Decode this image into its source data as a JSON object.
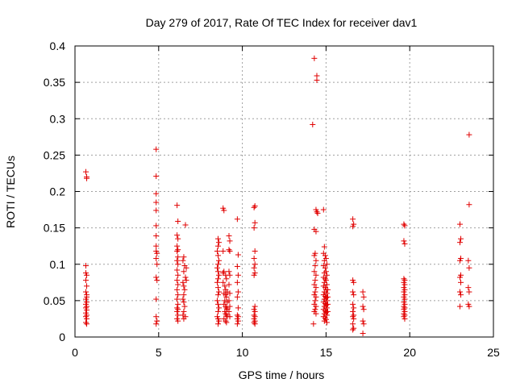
{
  "chart_data": {
    "type": "scatter",
    "title": "Day 279 of 2017, Rate Of TEC Index for receiver dav1",
    "xlabel": "GPS time / hours",
    "ylabel": "ROTI / TECUs",
    "xlim": [
      0,
      25
    ],
    "ylim": [
      0,
      0.4
    ],
    "x_ticks": [
      0,
      5,
      10,
      15,
      20,
      25
    ],
    "y_ticks": [
      0,
      0.05,
      0.1,
      0.15,
      0.2,
      0.25,
      0.3,
      0.35,
      0.4
    ],
    "x_tick_labels": [
      "0",
      "5",
      "10",
      "15",
      "20",
      "25"
    ],
    "y_tick_labels": [
      "0",
      "0.05",
      "0.1",
      "0.15",
      "0.2",
      "0.25",
      "0.3",
      "0.35",
      "0.4"
    ],
    "grid": true,
    "marker": "+",
    "color": "#e00000",
    "points": [
      [
        0.65,
        0.227
      ],
      [
        0.7,
        0.22
      ],
      [
        0.7,
        0.218
      ],
      [
        0.65,
        0.098
      ],
      [
        0.65,
        0.088
      ],
      [
        0.7,
        0.085
      ],
      [
        0.65,
        0.078
      ],
      [
        0.7,
        0.07
      ],
      [
        0.65,
        0.062
      ],
      [
        0.7,
        0.058
      ],
      [
        0.7,
        0.055
      ],
      [
        0.65,
        0.052
      ],
      [
        0.7,
        0.048
      ],
      [
        0.65,
        0.045
      ],
      [
        0.7,
        0.042
      ],
      [
        0.65,
        0.04
      ],
      [
        0.7,
        0.037
      ],
      [
        0.65,
        0.033
      ],
      [
        0.7,
        0.03
      ],
      [
        0.65,
        0.028
      ],
      [
        0.7,
        0.025
      ],
      [
        0.65,
        0.02
      ],
      [
        0.7,
        0.018
      ],
      [
        4.85,
        0.258
      ],
      [
        4.85,
        0.221
      ],
      [
        4.85,
        0.197
      ],
      [
        4.85,
        0.185
      ],
      [
        4.85,
        0.174
      ],
      [
        4.85,
        0.153
      ],
      [
        4.85,
        0.139
      ],
      [
        4.85,
        0.125
      ],
      [
        4.85,
        0.118
      ],
      [
        4.9,
        0.115
      ],
      [
        4.85,
        0.108
      ],
      [
        4.9,
        0.1
      ],
      [
        4.85,
        0.082
      ],
      [
        4.9,
        0.078
      ],
      [
        4.85,
        0.052
      ],
      [
        4.85,
        0.028
      ],
      [
        4.9,
        0.022
      ],
      [
        4.85,
        0.018
      ],
      [
        6.1,
        0.181
      ],
      [
        6.15,
        0.159
      ],
      [
        6.1,
        0.14
      ],
      [
        6.15,
        0.135
      ],
      [
        6.1,
        0.125
      ],
      [
        6.15,
        0.12
      ],
      [
        6.1,
        0.118
      ],
      [
        6.15,
        0.11
      ],
      [
        6.1,
        0.105
      ],
      [
        6.15,
        0.1
      ],
      [
        6.1,
        0.092
      ],
      [
        6.15,
        0.085
      ],
      [
        6.1,
        0.078
      ],
      [
        6.15,
        0.072
      ],
      [
        6.1,
        0.065
      ],
      [
        6.15,
        0.058
      ],
      [
        6.1,
        0.052
      ],
      [
        6.15,
        0.045
      ],
      [
        6.1,
        0.04
      ],
      [
        6.15,
        0.038
      ],
      [
        6.1,
        0.035
      ],
      [
        6.15,
        0.03
      ],
      [
        6.1,
        0.025
      ],
      [
        6.15,
        0.022
      ],
      [
        6.5,
        0.11
      ],
      [
        6.45,
        0.105
      ],
      [
        6.55,
        0.098
      ],
      [
        6.5,
        0.09
      ],
      [
        6.45,
        0.075
      ],
      [
        6.5,
        0.07
      ],
      [
        6.55,
        0.065
      ],
      [
        6.5,
        0.058
      ],
      [
        6.45,
        0.052
      ],
      [
        6.5,
        0.048
      ],
      [
        6.55,
        0.042
      ],
      [
        6.5,
        0.035
      ],
      [
        6.45,
        0.03
      ],
      [
        6.5,
        0.025
      ],
      [
        6.6,
        0.154
      ],
      [
        6.65,
        0.095
      ],
      [
        6.6,
        0.082
      ],
      [
        6.65,
        0.078
      ],
      [
        6.6,
        0.028
      ],
      [
        8.55,
        0.135
      ],
      [
        8.6,
        0.13
      ],
      [
        8.55,
        0.125
      ],
      [
        8.5,
        0.118
      ],
      [
        8.55,
        0.112
      ],
      [
        8.6,
        0.105
      ],
      [
        8.55,
        0.1
      ],
      [
        8.5,
        0.095
      ],
      [
        8.55,
        0.09
      ],
      [
        8.6,
        0.085
      ],
      [
        8.55,
        0.08
      ],
      [
        8.5,
        0.075
      ],
      [
        8.55,
        0.068
      ],
      [
        8.6,
        0.062
      ],
      [
        8.55,
        0.058
      ],
      [
        8.5,
        0.05
      ],
      [
        8.55,
        0.045
      ],
      [
        8.6,
        0.04
      ],
      [
        8.55,
        0.035
      ],
      [
        8.5,
        0.028
      ],
      [
        8.55,
        0.025
      ],
      [
        8.6,
        0.022
      ],
      [
        8.55,
        0.018
      ],
      [
        8.85,
        0.177
      ],
      [
        8.9,
        0.174
      ],
      [
        8.85,
        0.118
      ],
      [
        8.9,
        0.09
      ],
      [
        8.85,
        0.088
      ],
      [
        9.0,
        0.085
      ],
      [
        9.05,
        0.08
      ],
      [
        8.85,
        0.075
      ],
      [
        8.95,
        0.07
      ],
      [
        9.0,
        0.065
      ],
      [
        9.1,
        0.062
      ],
      [
        8.9,
        0.06
      ],
      [
        9.0,
        0.058
      ],
      [
        9.05,
        0.055
      ],
      [
        8.95,
        0.05
      ],
      [
        9.1,
        0.048
      ],
      [
        8.9,
        0.045
      ],
      [
        9.0,
        0.042
      ],
      [
        9.05,
        0.04
      ],
      [
        9.1,
        0.038
      ],
      [
        8.95,
        0.035
      ],
      [
        9.0,
        0.032
      ],
      [
        9.05,
        0.03
      ],
      [
        9.1,
        0.028
      ],
      [
        8.9,
        0.025
      ],
      [
        9.0,
        0.022
      ],
      [
        9.05,
        0.02
      ],
      [
        9.2,
        0.139
      ],
      [
        9.25,
        0.132
      ],
      [
        9.2,
        0.12
      ],
      [
        9.25,
        0.118
      ],
      [
        9.2,
        0.09
      ],
      [
        9.25,
        0.085
      ],
      [
        9.2,
        0.072
      ],
      [
        9.25,
        0.06
      ],
      [
        9.2,
        0.05
      ],
      [
        9.25,
        0.042
      ],
      [
        9.2,
        0.035
      ],
      [
        9.25,
        0.028
      ],
      [
        9.7,
        0.162
      ],
      [
        9.75,
        0.113
      ],
      [
        9.7,
        0.097
      ],
      [
        9.75,
        0.085
      ],
      [
        9.7,
        0.075
      ],
      [
        9.75,
        0.062
      ],
      [
        9.7,
        0.055
      ],
      [
        9.75,
        0.04
      ],
      [
        9.7,
        0.03
      ],
      [
        9.75,
        0.028
      ],
      [
        9.7,
        0.025
      ],
      [
        9.75,
        0.022
      ],
      [
        9.7,
        0.018
      ],
      [
        10.75,
        0.18
      ],
      [
        10.7,
        0.178
      ],
      [
        10.75,
        0.157
      ],
      [
        10.7,
        0.15
      ],
      [
        10.75,
        0.118
      ],
      [
        10.7,
        0.108
      ],
      [
        10.75,
        0.1
      ],
      [
        10.7,
        0.095
      ],
      [
        10.75,
        0.088
      ],
      [
        10.7,
        0.085
      ],
      [
        10.75,
        0.042
      ],
      [
        10.7,
        0.038
      ],
      [
        10.75,
        0.035
      ],
      [
        10.7,
        0.03
      ],
      [
        10.75,
        0.028
      ],
      [
        10.7,
        0.025
      ],
      [
        10.75,
        0.022
      ],
      [
        10.7,
        0.02
      ],
      [
        10.75,
        0.018
      ],
      [
        14.3,
        0.383
      ],
      [
        14.45,
        0.359
      ],
      [
        14.45,
        0.353
      ],
      [
        14.2,
        0.292
      ],
      [
        14.4,
        0.175
      ],
      [
        14.45,
        0.172
      ],
      [
        14.5,
        0.17
      ],
      [
        14.3,
        0.148
      ],
      [
        14.4,
        0.145
      ],
      [
        14.35,
        0.115
      ],
      [
        14.3,
        0.112
      ],
      [
        14.4,
        0.105
      ],
      [
        14.35,
        0.098
      ],
      [
        14.3,
        0.09
      ],
      [
        14.4,
        0.085
      ],
      [
        14.35,
        0.078
      ],
      [
        14.3,
        0.072
      ],
      [
        14.4,
        0.068
      ],
      [
        14.35,
        0.062
      ],
      [
        14.3,
        0.058
      ],
      [
        14.4,
        0.055
      ],
      [
        14.35,
        0.05
      ],
      [
        14.3,
        0.045
      ],
      [
        14.4,
        0.042
      ],
      [
        14.35,
        0.038
      ],
      [
        14.3,
        0.035
      ],
      [
        14.4,
        0.032
      ],
      [
        14.25,
        0.018
      ],
      [
        14.85,
        0.175
      ],
      [
        14.9,
        0.124
      ],
      [
        14.85,
        0.115
      ],
      [
        14.95,
        0.112
      ],
      [
        15.0,
        0.108
      ],
      [
        14.9,
        0.105
      ],
      [
        15.05,
        0.1
      ],
      [
        14.85,
        0.098
      ],
      [
        14.95,
        0.095
      ],
      [
        15.0,
        0.09
      ],
      [
        14.9,
        0.088
      ],
      [
        15.05,
        0.085
      ],
      [
        14.85,
        0.082
      ],
      [
        14.95,
        0.08
      ],
      [
        15.0,
        0.078
      ],
      [
        14.9,
        0.075
      ],
      [
        15.05,
        0.072
      ],
      [
        14.85,
        0.07
      ],
      [
        14.95,
        0.068
      ],
      [
        15.0,
        0.065
      ],
      [
        14.9,
        0.062
      ],
      [
        15.05,
        0.06
      ],
      [
        14.85,
        0.058
      ],
      [
        14.95,
        0.056
      ],
      [
        15.0,
        0.054
      ],
      [
        14.9,
        0.052
      ],
      [
        15.05,
        0.05
      ],
      [
        14.85,
        0.048
      ],
      [
        14.95,
        0.046
      ],
      [
        15.0,
        0.044
      ],
      [
        14.9,
        0.042
      ],
      [
        15.05,
        0.04
      ],
      [
        14.85,
        0.038
      ],
      [
        14.95,
        0.036
      ],
      [
        15.0,
        0.034
      ],
      [
        14.9,
        0.032
      ],
      [
        15.05,
        0.03
      ],
      [
        14.85,
        0.028
      ],
      [
        14.95,
        0.026
      ],
      [
        15.0,
        0.024
      ],
      [
        14.9,
        0.022
      ],
      [
        15.05,
        0.02
      ],
      [
        15.1,
        0.065
      ],
      [
        15.1,
        0.055
      ],
      [
        15.1,
        0.045
      ],
      [
        15.1,
        0.035
      ],
      [
        16.6,
        0.162
      ],
      [
        16.65,
        0.155
      ],
      [
        16.6,
        0.152
      ],
      [
        16.6,
        0.078
      ],
      [
        16.65,
        0.075
      ],
      [
        16.6,
        0.062
      ],
      [
        16.65,
        0.058
      ],
      [
        16.6,
        0.045
      ],
      [
        16.65,
        0.04
      ],
      [
        16.6,
        0.035
      ],
      [
        16.65,
        0.03
      ],
      [
        16.6,
        0.028
      ],
      [
        16.65,
        0.025
      ],
      [
        16.6,
        0.018
      ],
      [
        16.65,
        0.012
      ],
      [
        16.6,
        0.01
      ],
      [
        17.2,
        0.062
      ],
      [
        17.25,
        0.055
      ],
      [
        17.2,
        0.042
      ],
      [
        17.25,
        0.038
      ],
      [
        17.2,
        0.022
      ],
      [
        17.25,
        0.018
      ],
      [
        17.2,
        0.005
      ],
      [
        19.65,
        0.155
      ],
      [
        19.7,
        0.153
      ],
      [
        19.65,
        0.132
      ],
      [
        19.7,
        0.128
      ],
      [
        19.65,
        0.08
      ],
      [
        19.7,
        0.078
      ],
      [
        19.65,
        0.075
      ],
      [
        19.7,
        0.072
      ],
      [
        19.65,
        0.068
      ],
      [
        19.7,
        0.065
      ],
      [
        19.65,
        0.062
      ],
      [
        19.7,
        0.058
      ],
      [
        19.65,
        0.055
      ],
      [
        19.7,
        0.052
      ],
      [
        19.65,
        0.048
      ],
      [
        19.7,
        0.045
      ],
      [
        19.65,
        0.042
      ],
      [
        19.7,
        0.04
      ],
      [
        19.65,
        0.038
      ],
      [
        19.7,
        0.035
      ],
      [
        19.65,
        0.032
      ],
      [
        19.7,
        0.03
      ],
      [
        19.65,
        0.028
      ],
      [
        19.7,
        0.025
      ],
      [
        23.0,
        0.155
      ],
      [
        23.05,
        0.135
      ],
      [
        23.0,
        0.13
      ],
      [
        23.05,
        0.108
      ],
      [
        23.0,
        0.105
      ],
      [
        23.05,
        0.085
      ],
      [
        23.0,
        0.082
      ],
      [
        23.05,
        0.075
      ],
      [
        23.0,
        0.062
      ],
      [
        23.05,
        0.058
      ],
      [
        23.0,
        0.042
      ],
      [
        23.55,
        0.278
      ],
      [
        23.55,
        0.182
      ],
      [
        23.5,
        0.105
      ],
      [
        23.55,
        0.095
      ],
      [
        23.5,
        0.068
      ],
      [
        23.55,
        0.062
      ],
      [
        23.5,
        0.045
      ],
      [
        23.55,
        0.042
      ]
    ]
  }
}
